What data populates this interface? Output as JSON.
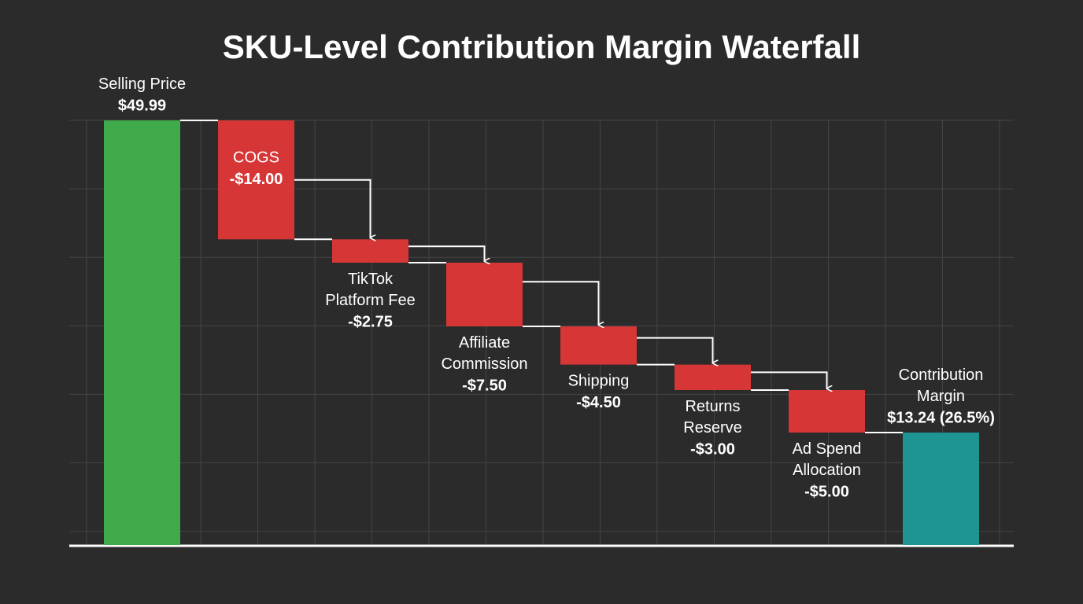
{
  "chart_data": {
    "type": "waterfall",
    "title": "SKU-Level Contribution Margin Waterfall",
    "categories": [
      "Selling Price",
      "COGS",
      "TikTok Platform Fee",
      "Affiliate Commission",
      "Shipping",
      "Returns Reserve",
      "Ad Spend Allocation",
      "Contribution Margin"
    ],
    "values": [
      49.99,
      -14.0,
      -2.75,
      -7.5,
      -4.5,
      -3.0,
      -5.0,
      13.24
    ],
    "value_labels": [
      "$49.99",
      "-$14.00",
      "-$2.75",
      "-$7.50",
      "-$4.50",
      "-$3.00",
      "-$5.00",
      "$13.24 (26.5%)"
    ],
    "measures": [
      "absolute",
      "relative",
      "relative",
      "relative",
      "relative",
      "relative",
      "relative",
      "total"
    ],
    "colors": [
      "#3fab4b",
      "#d63636",
      "#d63636",
      "#d63636",
      "#d63636",
      "#d63636",
      "#d63636",
      "#1f9593"
    ],
    "ylim": [
      0,
      50
    ],
    "grid": true
  }
}
